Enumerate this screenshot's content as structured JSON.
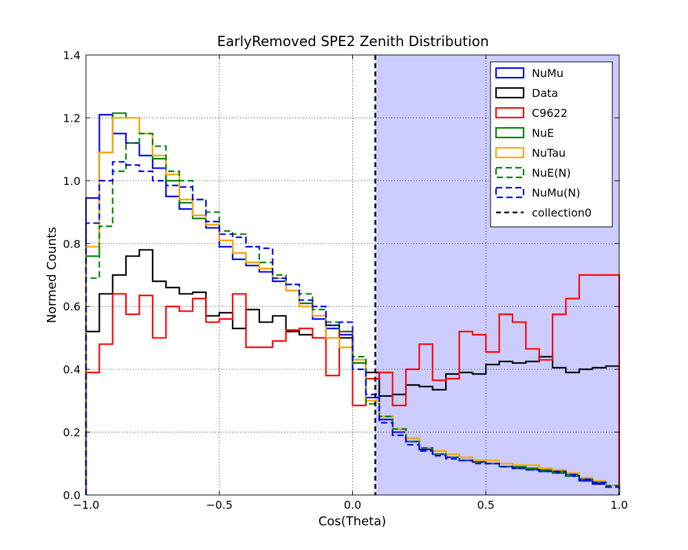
{
  "chart_data": {
    "type": "line",
    "style": "step-histogram",
    "title": "EarlyRemoved SPE2 Zenith Distribution",
    "xlabel": "Cos(Theta)",
    "ylabel": "Normed Counts",
    "xlim": [
      -1.0,
      1.0
    ],
    "ylim": [
      0.0,
      1.4
    ],
    "xticks": [
      -1.0,
      -0.5,
      0.0,
      0.5,
      1.0
    ],
    "xtick_labels": [
      "−1.0",
      "−0.5",
      "0.0",
      "0.5",
      "1.0"
    ],
    "yticks": [
      0.0,
      0.2,
      0.4,
      0.6,
      0.8,
      1.0,
      1.2,
      1.4
    ],
    "ytick_labels": [
      "0.0",
      "0.2",
      "0.4",
      "0.6",
      "0.8",
      "1.0",
      "1.2",
      "1.4"
    ],
    "grid": true,
    "legend_position": "top-right",
    "bin_edges": [
      -1.0,
      -0.95,
      -0.9,
      -0.85,
      -0.8,
      -0.75,
      -0.7,
      -0.65,
      -0.6,
      -0.55,
      -0.5,
      -0.45,
      -0.4,
      -0.35,
      -0.3,
      -0.25,
      -0.2,
      -0.15,
      -0.1,
      -0.05,
      0.0,
      0.05,
      0.1,
      0.15,
      0.2,
      0.25,
      0.3,
      0.35,
      0.4,
      0.45,
      0.5,
      0.55,
      0.6,
      0.65,
      0.7,
      0.75,
      0.8,
      0.85,
      0.9,
      0.95,
      1.0
    ],
    "shaded_region": {
      "x_start": 0.085,
      "x_end": 1.0,
      "color": "#ccccff"
    },
    "vertical_line": {
      "name": "collection0",
      "x": 0.085,
      "color": "#000000",
      "dashed": true
    },
    "series": [
      {
        "name": "NuMu",
        "color": "#0000ff",
        "dashed": false,
        "values": [
          0.945,
          1.21,
          1.15,
          1.12,
          1.08,
          1.04,
          0.95,
          0.91,
          0.89,
          0.85,
          0.79,
          0.75,
          0.73,
          0.71,
          0.68,
          0.65,
          0.61,
          0.56,
          0.53,
          0.51,
          0.42,
          0.31,
          0.24,
          0.2,
          0.17,
          0.145,
          0.13,
          0.12,
          0.11,
          0.105,
          0.1,
          0.09,
          0.085,
          0.08,
          0.075,
          0.07,
          0.06,
          0.045,
          0.035,
          0.03
        ]
      },
      {
        "name": "Data",
        "color": "#000000",
        "dashed": false,
        "values": [
          0.52,
          0.64,
          0.7,
          0.76,
          0.78,
          0.68,
          0.66,
          0.64,
          0.645,
          0.57,
          0.58,
          0.53,
          0.59,
          0.55,
          0.57,
          0.52,
          0.51,
          0.5,
          0.54,
          0.5,
          0.43,
          0.39,
          0.315,
          0.32,
          0.35,
          0.345,
          0.335,
          0.385,
          0.39,
          0.385,
          0.415,
          0.425,
          0.42,
          0.425,
          0.44,
          0.405,
          0.39,
          0.4,
          0.405,
          0.41
        ]
      },
      {
        "name": "C9622",
        "color": "#ff0000",
        "dashed": false,
        "values": [
          0.39,
          0.48,
          0.64,
          0.575,
          0.635,
          0.5,
          0.6,
          0.585,
          0.625,
          0.55,
          0.56,
          0.64,
          0.47,
          0.47,
          0.49,
          0.525,
          0.53,
          0.5,
          0.38,
          0.52,
          0.285,
          0.37,
          0.39,
          0.285,
          0.4,
          0.48,
          0.365,
          0.37,
          0.52,
          0.51,
          0.455,
          0.575,
          0.55,
          0.465,
          0.43,
          0.575,
          0.625,
          0.7,
          0.7,
          0.7
        ]
      },
      {
        "name": "NuE",
        "color": "#008000",
        "dashed": false,
        "values": [
          0.76,
          1.09,
          1.215,
          1.2,
          1.15,
          1.07,
          1.0,
          0.93,
          0.88,
          0.86,
          0.81,
          0.77,
          0.74,
          0.72,
          0.69,
          0.65,
          0.61,
          0.57,
          0.5,
          0.47,
          0.42,
          0.3,
          0.25,
          0.21,
          0.18,
          0.15,
          0.14,
          0.13,
          0.12,
          0.11,
          0.1,
          0.09,
          0.09,
          0.085,
          0.08,
          0.075,
          0.065,
          0.05,
          0.04,
          0.03
        ]
      },
      {
        "name": "NuTau",
        "color": "#ffa500",
        "dashed": false,
        "values": [
          0.79,
          1.09,
          1.2,
          1.2,
          1.15,
          1.08,
          1.02,
          0.94,
          0.89,
          0.86,
          0.81,
          0.77,
          0.74,
          0.72,
          0.69,
          0.65,
          0.6,
          0.57,
          0.5,
          0.47,
          0.43,
          0.3,
          0.25,
          0.21,
          0.18,
          0.15,
          0.14,
          0.13,
          0.12,
          0.11,
          0.11,
          0.1,
          0.095,
          0.095,
          0.085,
          0.08,
          0.07,
          0.055,
          0.045,
          0.03
        ]
      },
      {
        "name": "NuE(N)",
        "color": "#008000",
        "dashed": true,
        "values": [
          0.69,
          0.855,
          1.03,
          1.12,
          1.15,
          1.11,
          1.03,
          1.0,
          0.94,
          0.9,
          0.84,
          0.83,
          0.79,
          0.74,
          0.7,
          0.67,
          0.64,
          0.59,
          0.55,
          0.52,
          0.44,
          0.29,
          0.25,
          0.21,
          0.17,
          0.15,
          0.13,
          0.12,
          0.11,
          0.105,
          0.1,
          0.09,
          0.085,
          0.08,
          0.075,
          0.07,
          0.06,
          0.05,
          0.04,
          0.03
        ]
      },
      {
        "name": "NuMu(N)",
        "color": "#0000ff",
        "dashed": true,
        "values": [
          0.865,
          1.0,
          1.06,
          1.05,
          1.03,
          1.0,
          0.985,
          0.98,
          0.94,
          0.87,
          0.83,
          0.82,
          0.79,
          0.785,
          0.69,
          0.67,
          0.62,
          0.6,
          0.54,
          0.55,
          0.4,
          0.32,
          0.23,
          0.19,
          0.16,
          0.14,
          0.125,
          0.115,
          0.11,
          0.1,
          0.1,
          0.09,
          0.085,
          0.08,
          0.075,
          0.075,
          0.065,
          0.05,
          0.04,
          0.025
        ]
      }
    ],
    "legend": [
      "NuMu",
      "Data",
      "C9622",
      "NuE",
      "NuTau",
      "NuE(N)",
      "NuMu(N)",
      "collection0"
    ]
  }
}
